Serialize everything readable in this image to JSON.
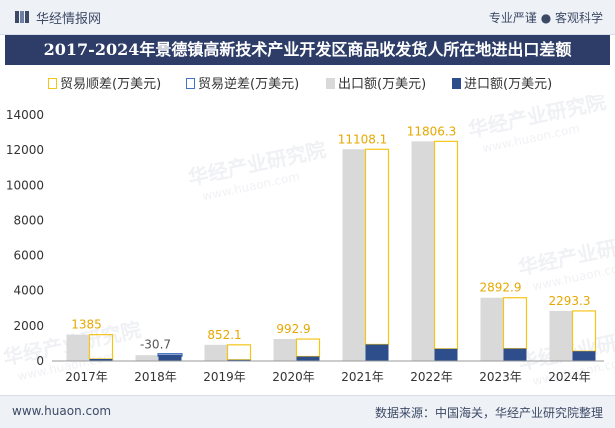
{
  "header": {
    "brand": "华经情报网",
    "tagline": "专业严谨 ● 客观科学"
  },
  "footer": {
    "site": "www.huaon.com",
    "source": "数据来源：中国海关，华经产业研究院整理"
  },
  "watermark": {
    "text": "华经产业研究院",
    "url": "www.huaon.com"
  },
  "colors": {
    "export": "#d9d9d9",
    "import": "#2d4e8a",
    "surplus": "#f5c518",
    "deficit": "#4472c4",
    "title_bg": "#2d3d67"
  },
  "chart_data": {
    "type": "bar",
    "title": "2017-2024年景德镇高新技术产业开发区商品收发货人所在地进出口差额",
    "categories": [
      "2017年",
      "2018年",
      "2019年",
      "2020年",
      "2021年",
      "2022年",
      "2023年",
      "2024年"
    ],
    "series": [
      {
        "name": "贸易顺差(万美元)",
        "values": [
          1385,
          null,
          852.1,
          992.9,
          11108.1,
          11806.3,
          2892.9,
          2293.3
        ]
      },
      {
        "name": "贸易逆差(万美元)",
        "values": [
          null,
          -30.7,
          null,
          null,
          null,
          null,
          null,
          null
        ]
      },
      {
        "name": "出口额(万美元)",
        "values": [
          1500,
          330,
          920,
          1250,
          12050,
          12500,
          3600,
          2850
        ]
      },
      {
        "name": "进口额(万美元)",
        "values": [
          115,
          360,
          68,
          257,
          942,
          694,
          707,
          557
        ]
      }
    ],
    "labels": [
      "1385",
      "-30.7",
      "852.1",
      "992.9",
      "11108.1",
      "11806.3",
      "2892.9",
      "2293.3"
    ],
    "ylim": [
      0,
      14000
    ],
    "yticks": [
      0,
      2000,
      4000,
      6000,
      8000,
      10000,
      12000,
      14000
    ],
    "grid": false,
    "legend": "top"
  }
}
